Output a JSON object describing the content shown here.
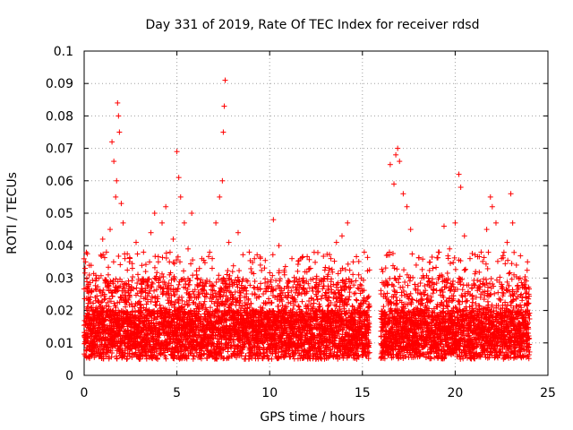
{
  "chart_data": {
    "type": "scatter",
    "title": "Day 331 of 2019, Rate Of TEC Index for receiver rdsd",
    "xlabel": "GPS time / hours",
    "ylabel": "ROTI / TECUs",
    "xlim": [
      0,
      25
    ],
    "ylim": [
      0,
      0.1
    ],
    "xticks": [
      0,
      5,
      10,
      15,
      20,
      25
    ],
    "xtick_labels": [
      "0",
      "5",
      "10",
      "15",
      "20",
      "25"
    ],
    "yticks": [
      0,
      0.01,
      0.02,
      0.03,
      0.04,
      0.05,
      0.06,
      0.07,
      0.08,
      0.09,
      0.1
    ],
    "ytick_labels": [
      "0",
      "0.01",
      "0.02",
      "0.03",
      "0.04",
      "0.05",
      "0.06",
      "0.07",
      "0.08",
      "0.09",
      "0.1"
    ],
    "grid": true,
    "marker": "+",
    "color": "#ff0000",
    "data_gap_hours": [
      15.4,
      16.0
    ],
    "series": [
      {
        "name": "ROTI",
        "points": [
          [
            0.05,
            0.033
          ],
          [
            0.1,
            0.027
          ],
          [
            0.2,
            0.018
          ],
          [
            0.3,
            0.014
          ],
          [
            0.4,
            0.021
          ],
          [
            0.5,
            0.016
          ],
          [
            0.6,
            0.024
          ],
          [
            0.7,
            0.012
          ],
          [
            0.8,
            0.03
          ],
          [
            0.9,
            0.019
          ],
          [
            1.0,
            0.042
          ],
          [
            1.1,
            0.025
          ],
          [
            1.2,
            0.038
          ],
          [
            1.3,
            0.031
          ],
          [
            1.4,
            0.045
          ],
          [
            1.5,
            0.072
          ],
          [
            1.6,
            0.066
          ],
          [
            1.7,
            0.055
          ],
          [
            1.75,
            0.06
          ],
          [
            1.8,
            0.084
          ],
          [
            1.85,
            0.08
          ],
          [
            1.9,
            0.075
          ],
          [
            2.0,
            0.053
          ],
          [
            2.1,
            0.047
          ],
          [
            2.2,
            0.036
          ],
          [
            2.4,
            0.028
          ],
          [
            2.6,
            0.033
          ],
          [
            2.8,
            0.041
          ],
          [
            3.0,
            0.026
          ],
          [
            3.2,
            0.038
          ],
          [
            3.4,
            0.029
          ],
          [
            3.6,
            0.044
          ],
          [
            3.8,
            0.05
          ],
          [
            4.0,
            0.035
          ],
          [
            4.2,
            0.047
          ],
          [
            4.4,
            0.052
          ],
          [
            4.6,
            0.031
          ],
          [
            4.8,
            0.042
          ],
          [
            5.0,
            0.069
          ],
          [
            5.1,
            0.061
          ],
          [
            5.2,
            0.055
          ],
          [
            5.4,
            0.047
          ],
          [
            5.6,
            0.039
          ],
          [
            5.8,
            0.05
          ],
          [
            6.0,
            0.022
          ],
          [
            6.3,
            0.018
          ],
          [
            6.6,
            0.025
          ],
          [
            6.9,
            0.033
          ],
          [
            7.1,
            0.047
          ],
          [
            7.3,
            0.055
          ],
          [
            7.45,
            0.06
          ],
          [
            7.5,
            0.075
          ],
          [
            7.55,
            0.083
          ],
          [
            7.6,
            0.091
          ],
          [
            7.8,
            0.041
          ],
          [
            8.0,
            0.032
          ],
          [
            8.3,
            0.044
          ],
          [
            8.6,
            0.027
          ],
          [
            8.9,
            0.038
          ],
          [
            9.2,
            0.029
          ],
          [
            9.5,
            0.034
          ],
          [
            9.8,
            0.026
          ],
          [
            10.2,
            0.048
          ],
          [
            10.5,
            0.04
          ],
          [
            10.8,
            0.031
          ],
          [
            11.2,
            0.036
          ],
          [
            11.5,
            0.028
          ],
          [
            11.8,
            0.03
          ],
          [
            12.2,
            0.033
          ],
          [
            12.5,
            0.025
          ],
          [
            12.9,
            0.029
          ],
          [
            13.3,
            0.036
          ],
          [
            13.6,
            0.041
          ],
          [
            13.9,
            0.043
          ],
          [
            14.2,
            0.047
          ],
          [
            14.5,
            0.035
          ],
          [
            14.8,
            0.031
          ],
          [
            15.1,
            0.038
          ],
          [
            15.3,
            0.024
          ],
          [
            16.1,
            0.032
          ],
          [
            16.3,
            0.037
          ],
          [
            16.5,
            0.065
          ],
          [
            16.7,
            0.059
          ],
          [
            16.8,
            0.068
          ],
          [
            16.9,
            0.07
          ],
          [
            17.0,
            0.066
          ],
          [
            17.2,
            0.056
          ],
          [
            17.4,
            0.052
          ],
          [
            17.6,
            0.045
          ],
          [
            17.9,
            0.034
          ],
          [
            18.2,
            0.03
          ],
          [
            18.5,
            0.028
          ],
          [
            18.8,
            0.033
          ],
          [
            19.1,
            0.038
          ],
          [
            19.4,
            0.046
          ],
          [
            19.7,
            0.039
          ],
          [
            20.0,
            0.047
          ],
          [
            20.2,
            0.062
          ],
          [
            20.3,
            0.058
          ],
          [
            20.5,
            0.043
          ],
          [
            20.8,
            0.036
          ],
          [
            21.1,
            0.032
          ],
          [
            21.4,
            0.038
          ],
          [
            21.7,
            0.045
          ],
          [
            21.9,
            0.055
          ],
          [
            22.0,
            0.052
          ],
          [
            22.2,
            0.047
          ],
          [
            22.5,
            0.036
          ],
          [
            22.8,
            0.041
          ],
          [
            23.0,
            0.056
          ],
          [
            23.1,
            0.047
          ],
          [
            23.3,
            0.034
          ],
          [
            23.5,
            0.03
          ],
          [
            23.7,
            0.028
          ],
          [
            23.9,
            0.035
          ]
        ]
      }
    ]
  }
}
